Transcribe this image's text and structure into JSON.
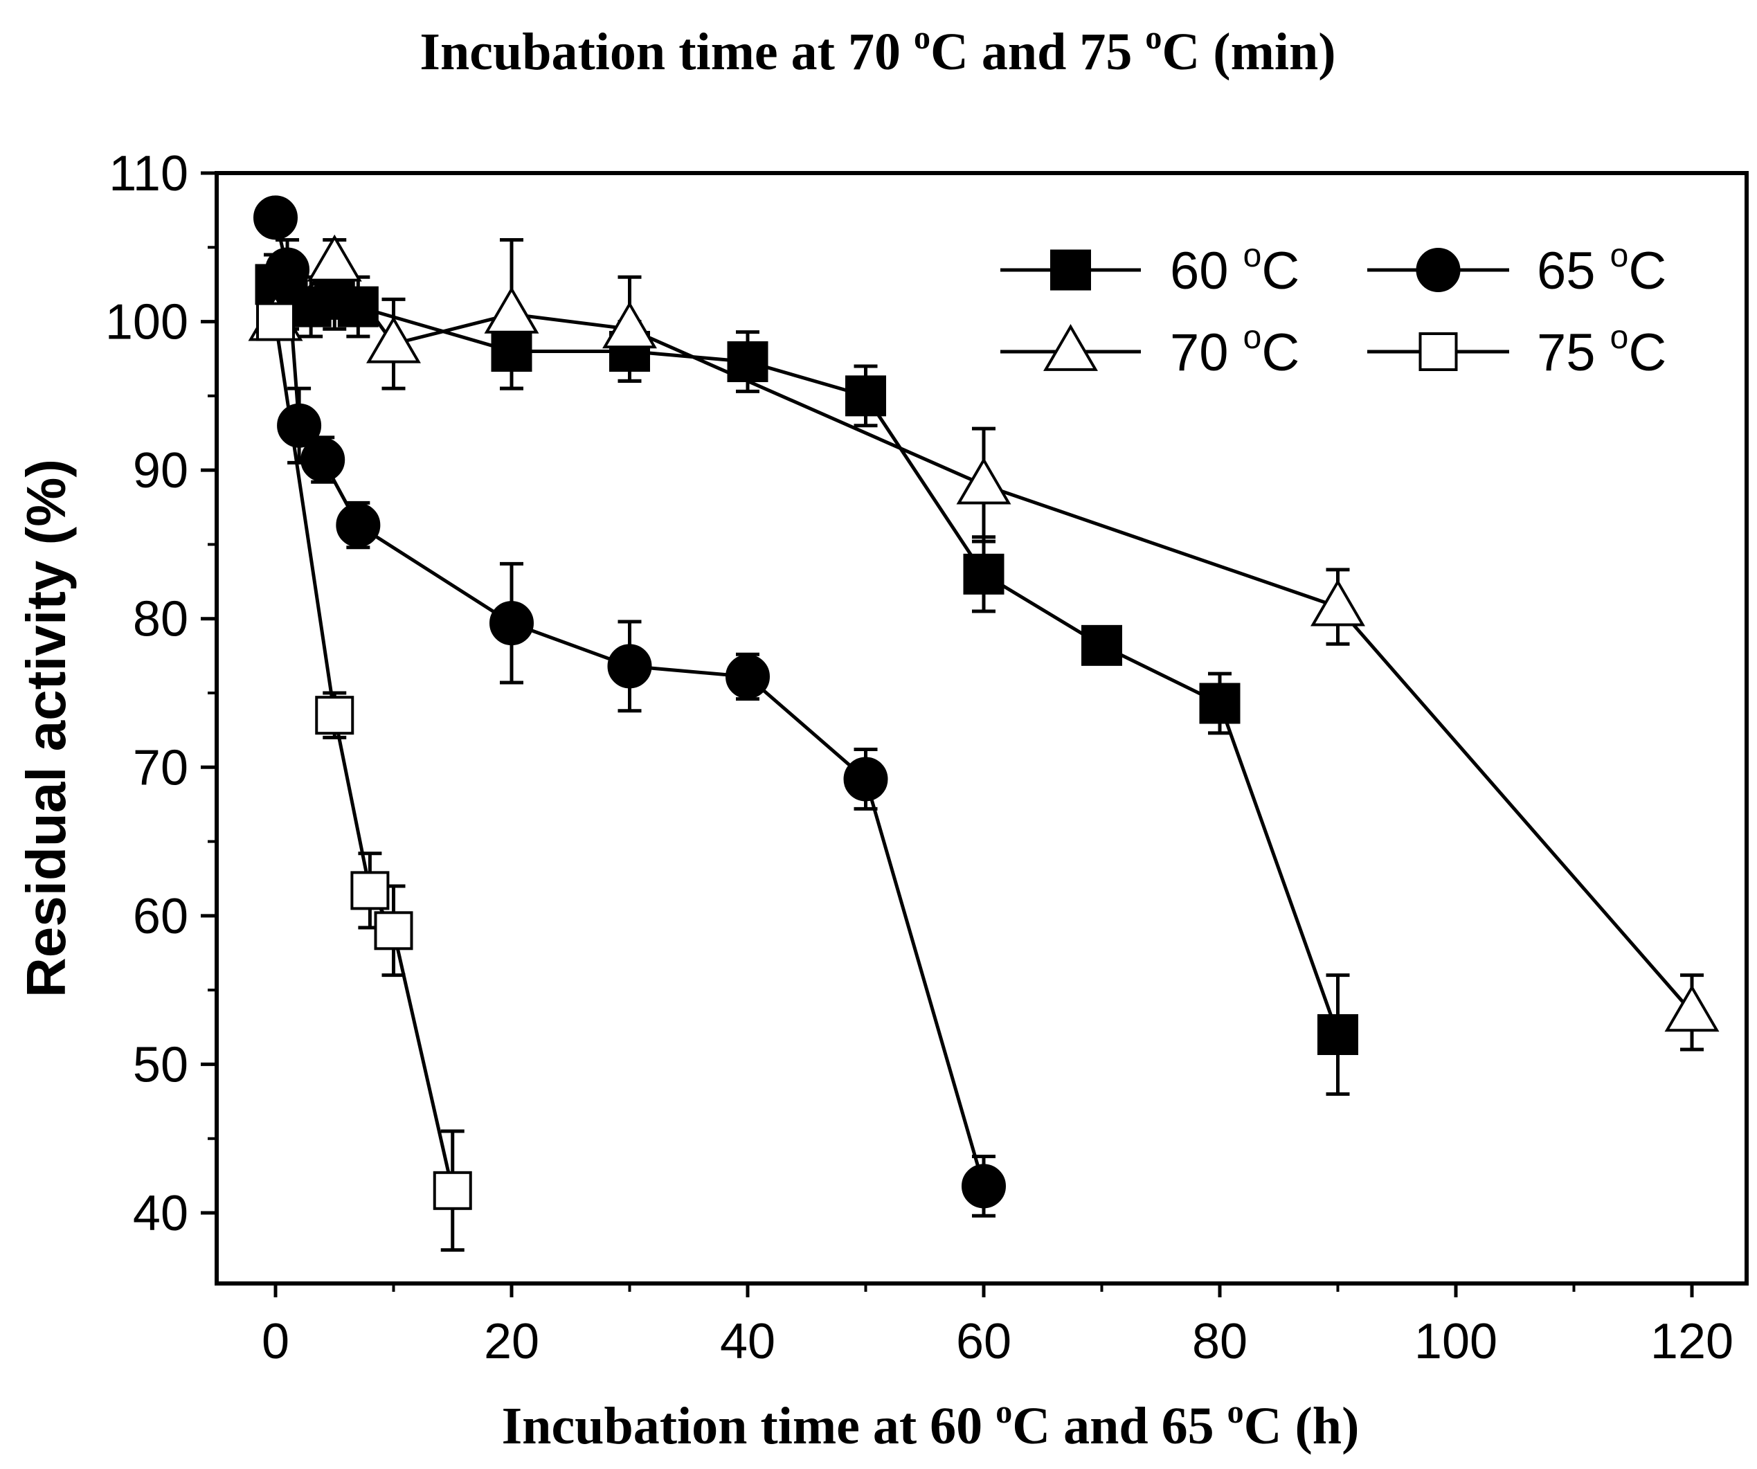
{
  "chart_data": {
    "type": "line",
    "title": "Incubation time at 70 °C and 75 °C (min)",
    "title_parts": {
      "pre": "Incubation time at 70 ",
      "sup1": "o",
      "mid": "C and 75 ",
      "sup2": "o",
      "post": "C (min)"
    },
    "xlabel": "Incubation time at 60 °C and 65 °C (h)",
    "xlabel_parts": {
      "pre": "Incubation time at 60 ",
      "sup1": "o",
      "mid": "C and 65 ",
      "sup2": "o",
      "post": "C (h)"
    },
    "ylabel": "Residual activity (%)",
    "xlim": [
      -5,
      125
    ],
    "ylim": [
      35,
      110
    ],
    "xticks": [
      0,
      20,
      40,
      60,
      80,
      100,
      120
    ],
    "yticks": [
      40,
      50,
      60,
      70,
      80,
      90,
      100,
      110
    ],
    "legend_position": "top-right",
    "series": [
      {
        "name": "60 °C",
        "label_num": "60 ",
        "label_sup": "o",
        "label_unit": "C",
        "marker": "square-filled",
        "x": [
          0,
          1,
          3,
          5,
          7,
          20,
          30,
          40,
          50,
          60,
          70,
          80,
          90
        ],
        "y": [
          102.5,
          101.5,
          101,
          101.5,
          101,
          98,
          98,
          97.3,
          95,
          83,
          78.2,
          74.3,
          52
        ],
        "err": [
          2,
          2,
          2,
          2,
          2,
          2.5,
          2,
          2,
          2,
          2.5,
          1,
          2,
          4
        ]
      },
      {
        "name": "65 °C",
        "label_num": "65 ",
        "label_sup": "o",
        "label_unit": "C",
        "marker": "circle-filled",
        "x": [
          0,
          1,
          2,
          4,
          7,
          20,
          30,
          40,
          50,
          60
        ],
        "y": [
          107,
          103.5,
          93,
          90.7,
          86.3,
          79.7,
          76.8,
          76.1,
          69.2,
          41.8
        ],
        "err": [
          1,
          2,
          2.5,
          1.5,
          1.5,
          4,
          3,
          1.5,
          2,
          2
        ]
      },
      {
        "name": "70 °C",
        "label_num": "70 ",
        "label_sup": "o",
        "label_unit": "C",
        "marker": "triangle-open",
        "x": [
          0,
          5,
          10,
          20,
          30,
          60,
          90,
          120
        ],
        "y": [
          100,
          104,
          98.5,
          100.5,
          99.5,
          89,
          80.8,
          53.5
        ],
        "err": [
          1,
          1.5,
          3,
          5,
          3.5,
          3.8,
          2.5,
          2.5
        ]
      },
      {
        "name": "75 °C",
        "label_num": "75 ",
        "label_sup": "o",
        "label_unit": "C",
        "marker": "square-open",
        "x": [
          0,
          5,
          8,
          10,
          15
        ],
        "y": [
          100,
          73.5,
          61.7,
          59,
          41.5
        ],
        "err": [
          1,
          1.5,
          2.5,
          3,
          4
        ]
      }
    ]
  }
}
